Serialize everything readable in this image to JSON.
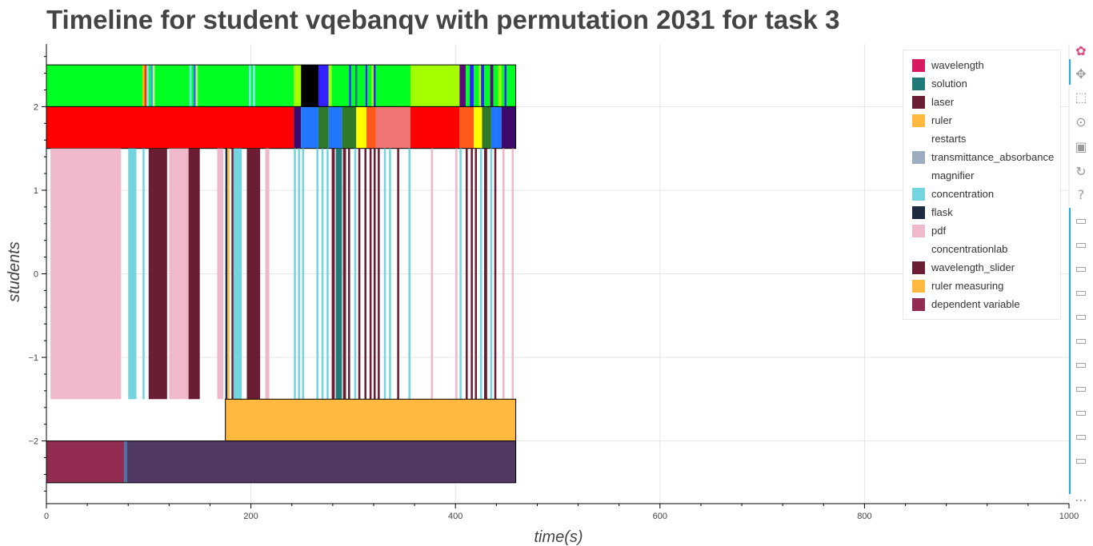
{
  "title": "Timeline for student vqebanqv with permutation 2031 for task 3",
  "chart_data": {
    "type": "bar",
    "title": "Timeline for student vqebanqv with permutation 2031 for task 3",
    "xlabel": "time(s)",
    "ylabel": "students",
    "xlim": [
      0,
      1000
    ],
    "ylim": [
      -2.75,
      2.75
    ],
    "x_ticks": [
      0,
      200,
      400,
      600,
      800,
      1000
    ],
    "y_ticks": [
      -2,
      -1,
      0,
      1,
      2
    ],
    "x_tick_labels": [
      "0",
      "200",
      "400",
      "600",
      "800",
      "1000"
    ],
    "y_tick_labels": [
      "−2",
      "−1",
      "0",
      "1",
      "2"
    ],
    "grid": true,
    "legend_position": "top-right",
    "legend": [
      {
        "name": "wavelength",
        "color": "#d81b60"
      },
      {
        "name": "solution",
        "color": "#1f7a78"
      },
      {
        "name": "laser",
        "color": "#6b1d33"
      },
      {
        "name": "ruler",
        "color": "#ffb940"
      },
      {
        "name": "restarts",
        "color": "#ffffff"
      },
      {
        "name": "transmittance_absorbance",
        "color": "#9eacbf"
      },
      {
        "name": "magnifier",
        "color": "#ffffff"
      },
      {
        "name": "concentration",
        "color": "#74d4df"
      },
      {
        "name": "flask",
        "color": "#1c2b40"
      },
      {
        "name": "pdf",
        "color": "#efb8cb"
      },
      {
        "name": "concentrationlab",
        "color": "#ffffff"
      },
      {
        "name": "wavelength_slider",
        "color": "#6b1d33"
      },
      {
        "name": "ruler measuring",
        "color": "#ffb940"
      },
      {
        "name": "dependent variable",
        "color": "#912b51"
      }
    ],
    "rows": [
      {
        "y_center": 2.25,
        "segments": [
          {
            "start": 0,
            "end": 94,
            "color": "#00ff22"
          },
          {
            "start": 94,
            "end": 96,
            "color": "#ffb000"
          },
          {
            "start": 96,
            "end": 98,
            "color": "#ff3300"
          },
          {
            "start": 98,
            "end": 100,
            "color": "#7fe0ff"
          },
          {
            "start": 100,
            "end": 102,
            "color": "#00ff22"
          },
          {
            "start": 102,
            "end": 104,
            "color": "#3399ff"
          },
          {
            "start": 104,
            "end": 106,
            "color": "#b8ff66"
          },
          {
            "start": 106,
            "end": 140,
            "color": "#00ff22"
          },
          {
            "start": 140,
            "end": 142,
            "color": "#7fe0ff"
          },
          {
            "start": 142,
            "end": 144,
            "color": "#00ff22"
          },
          {
            "start": 144,
            "end": 146,
            "color": "#3366ff"
          },
          {
            "start": 146,
            "end": 148,
            "color": "#b8ff66"
          },
          {
            "start": 148,
            "end": 198,
            "color": "#00ff22"
          },
          {
            "start": 198,
            "end": 200,
            "color": "#7fe0ff"
          },
          {
            "start": 200,
            "end": 202,
            "color": "#00ff22"
          },
          {
            "start": 202,
            "end": 204,
            "color": "#7fe0ff"
          },
          {
            "start": 204,
            "end": 242,
            "color": "#00ff22"
          },
          {
            "start": 242,
            "end": 249,
            "color": "#a4ff00"
          },
          {
            "start": 249,
            "end": 266,
            "color": "#000000"
          },
          {
            "start": 266,
            "end": 276,
            "color": "#3322ff"
          },
          {
            "start": 276,
            "end": 279,
            "color": "#a4ff00"
          },
          {
            "start": 279,
            "end": 296,
            "color": "#00ff22"
          },
          {
            "start": 296,
            "end": 298,
            "color": "#3322ff"
          },
          {
            "start": 298,
            "end": 302,
            "color": "#00ff22"
          },
          {
            "start": 302,
            "end": 304,
            "color": "#1f7a78"
          },
          {
            "start": 304,
            "end": 312,
            "color": "#00ff22"
          },
          {
            "start": 312,
            "end": 314,
            "color": "#3322ff"
          },
          {
            "start": 314,
            "end": 318,
            "color": "#00ff22"
          },
          {
            "start": 318,
            "end": 320,
            "color": "#a4ff00"
          },
          {
            "start": 320,
            "end": 322,
            "color": "#3322ff"
          },
          {
            "start": 322,
            "end": 356,
            "color": "#00ff22"
          },
          {
            "start": 356,
            "end": 404,
            "color": "#a4ff00"
          },
          {
            "start": 404,
            "end": 410,
            "color": "#5c0a7a"
          },
          {
            "start": 410,
            "end": 414,
            "color": "#00ff22"
          },
          {
            "start": 414,
            "end": 418,
            "color": "#3322ff"
          },
          {
            "start": 418,
            "end": 423,
            "color": "#00ff22"
          },
          {
            "start": 423,
            "end": 425,
            "color": "#a4ff00"
          },
          {
            "start": 425,
            "end": 428,
            "color": "#3322ff"
          },
          {
            "start": 428,
            "end": 434,
            "color": "#00ff22"
          },
          {
            "start": 434,
            "end": 437,
            "color": "#5c0a7a"
          },
          {
            "start": 437,
            "end": 442,
            "color": "#00ff22"
          },
          {
            "start": 442,
            "end": 445,
            "color": "#a4ff00"
          },
          {
            "start": 445,
            "end": 448,
            "color": "#00ff22"
          },
          {
            "start": 448,
            "end": 450,
            "color": "#3322ff"
          },
          {
            "start": 450,
            "end": 459,
            "color": "#00ff22"
          }
        ]
      },
      {
        "y_center": 1.75,
        "segments": [
          {
            "start": 0,
            "end": 242,
            "color": "#ff0000"
          },
          {
            "start": 242,
            "end": 249,
            "color": "#3d0a6b"
          },
          {
            "start": 249,
            "end": 266,
            "color": "#2277ff"
          },
          {
            "start": 266,
            "end": 276,
            "color": "#2f7a2a"
          },
          {
            "start": 276,
            "end": 289,
            "color": "#2277ff"
          },
          {
            "start": 289,
            "end": 303,
            "color": "#2f7a2a"
          },
          {
            "start": 303,
            "end": 313,
            "color": "#ffff00"
          },
          {
            "start": 313,
            "end": 322,
            "color": "#ff5a1a"
          },
          {
            "start": 322,
            "end": 356,
            "color": "#ef7572"
          },
          {
            "start": 356,
            "end": 404,
            "color": "#ff0000"
          },
          {
            "start": 404,
            "end": 418,
            "color": "#ff5a1a"
          },
          {
            "start": 418,
            "end": 426,
            "color": "#ffff00"
          },
          {
            "start": 426,
            "end": 435,
            "color": "#2f7a2a"
          },
          {
            "start": 435,
            "end": 445,
            "color": "#2277ff"
          },
          {
            "start": 445,
            "end": 459,
            "color": "#3d0a6b"
          }
        ]
      },
      {
        "y_center": 0,
        "y_start": -1.5,
        "y_end": 1.5,
        "segments": [
          {
            "start": 4,
            "end": 73,
            "color": "#efb8cb"
          },
          {
            "start": 80,
            "end": 88,
            "color": "#74d4df"
          },
          {
            "start": 94,
            "end": 96,
            "color": "#74d4df"
          },
          {
            "start": 100,
            "end": 118,
            "color": "#6b1d33"
          },
          {
            "start": 120,
            "end": 139,
            "color": "#efb8cb"
          },
          {
            "start": 139,
            "end": 150,
            "color": "#6b1d33"
          },
          {
            "start": 167,
            "end": 173,
            "color": "#efb8cb"
          },
          {
            "start": 175,
            "end": 177,
            "color": "#1c2b40"
          },
          {
            "start": 177,
            "end": 179,
            "color": "#ffb940"
          },
          {
            "start": 181,
            "end": 183,
            "color": "#6b1d33"
          },
          {
            "start": 183,
            "end": 191,
            "color": "#74d4df"
          },
          {
            "start": 196,
            "end": 209,
            "color": "#6b1d33"
          },
          {
            "start": 214,
            "end": 218,
            "color": "#efb8cb"
          },
          {
            "start": 242,
            "end": 244,
            "color": "#74d4df"
          },
          {
            "start": 246,
            "end": 248,
            "color": "#74d4df"
          },
          {
            "start": 250,
            "end": 252,
            "color": "#74d4df"
          },
          {
            "start": 264,
            "end": 266,
            "color": "#74d4df"
          },
          {
            "start": 269,
            "end": 271,
            "color": "#74d4df"
          },
          {
            "start": 274,
            "end": 276,
            "color": "#74d4df"
          },
          {
            "start": 279,
            "end": 282,
            "color": "#6b1d33"
          },
          {
            "start": 283,
            "end": 289,
            "color": "#1f7a78"
          },
          {
            "start": 290,
            "end": 293,
            "color": "#6b1d33"
          },
          {
            "start": 295,
            "end": 297,
            "color": "#6b1d33"
          },
          {
            "start": 301,
            "end": 303,
            "color": "#74d4df"
          },
          {
            "start": 305,
            "end": 307,
            "color": "#6b1d33"
          },
          {
            "start": 311,
            "end": 313,
            "color": "#6b1d33"
          },
          {
            "start": 316,
            "end": 318,
            "color": "#6b1d33"
          },
          {
            "start": 320,
            "end": 322,
            "color": "#6b1d33"
          },
          {
            "start": 324,
            "end": 326,
            "color": "#6b1d33"
          },
          {
            "start": 330,
            "end": 332,
            "color": "#74d4df"
          },
          {
            "start": 335,
            "end": 337,
            "color": "#74d4df"
          },
          {
            "start": 343,
            "end": 345,
            "color": "#6b1d33"
          },
          {
            "start": 354,
            "end": 356,
            "color": "#74d4df"
          },
          {
            "start": 376,
            "end": 378,
            "color": "#efb8cb"
          },
          {
            "start": 400,
            "end": 402,
            "color": "#efb8cb"
          },
          {
            "start": 404,
            "end": 406,
            "color": "#74d4df"
          },
          {
            "start": 410,
            "end": 412,
            "color": "#6b1d33"
          },
          {
            "start": 415,
            "end": 417,
            "color": "#6b1d33"
          },
          {
            "start": 419,
            "end": 421,
            "color": "#6b1d33"
          },
          {
            "start": 424,
            "end": 426,
            "color": "#74d4df"
          },
          {
            "start": 428,
            "end": 431,
            "color": "#6b1d33"
          },
          {
            "start": 434,
            "end": 436,
            "color": "#74d4df"
          },
          {
            "start": 438,
            "end": 440,
            "color": "#6b1d33"
          },
          {
            "start": 446,
            "end": 448,
            "color": "#efb8cb"
          },
          {
            "start": 455,
            "end": 457,
            "color": "#efb8cb"
          }
        ]
      },
      {
        "y_center": -1.75,
        "segments": [
          {
            "start": 175,
            "end": 459,
            "color": "#ffb940"
          }
        ]
      },
      {
        "y_center": -2.25,
        "segments": [
          {
            "start": 0,
            "end": 76,
            "color": "#912b51"
          },
          {
            "start": 76,
            "end": 79,
            "color": "#4a6fa5"
          },
          {
            "start": 79,
            "end": 459,
            "color": "#4f3963"
          }
        ]
      }
    ]
  },
  "toolbar": {
    "tools": [
      {
        "name": "bokeh-logo-icon",
        "glyph": "✿"
      },
      {
        "name": "pan-icon",
        "glyph": "✥"
      },
      {
        "name": "box-zoom-icon",
        "glyph": "⬚"
      },
      {
        "name": "wheel-zoom-icon",
        "glyph": "⊙"
      },
      {
        "name": "save-icon",
        "glyph": "▣"
      },
      {
        "name": "reset-icon",
        "glyph": "↻"
      },
      {
        "name": "help-icon",
        "glyph": "?"
      },
      {
        "name": "hover-icon",
        "glyph": "▭"
      },
      {
        "name": "hover-icon",
        "glyph": "▭"
      },
      {
        "name": "hover-icon",
        "glyph": "▭"
      },
      {
        "name": "hover-icon",
        "glyph": "▭"
      },
      {
        "name": "hover-icon",
        "glyph": "▭"
      },
      {
        "name": "hover-icon",
        "glyph": "▭"
      },
      {
        "name": "hover-icon",
        "glyph": "▭"
      },
      {
        "name": "hover-icon",
        "glyph": "▭"
      },
      {
        "name": "hover-icon",
        "glyph": "▭"
      },
      {
        "name": "hover-icon",
        "glyph": "▭"
      },
      {
        "name": "hover-icon",
        "glyph": "▭"
      },
      {
        "name": "more-icon",
        "glyph": "⋯"
      }
    ]
  }
}
